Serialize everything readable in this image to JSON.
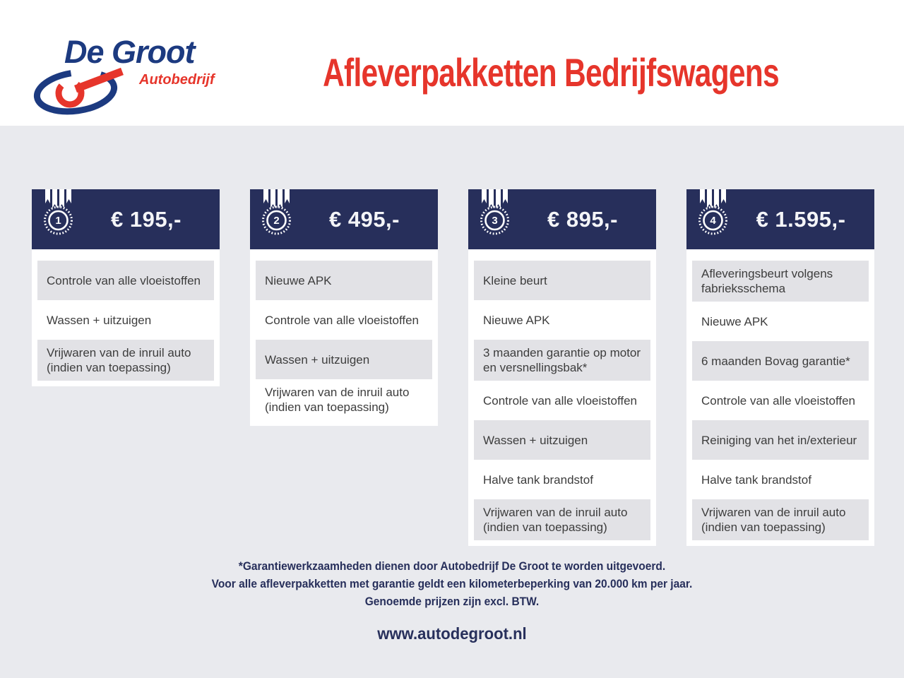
{
  "brand": {
    "name": "De Groot",
    "subtitle": "Autobedrijf"
  },
  "header": {
    "title": "Afleverpakketten Bedrijfswagens"
  },
  "packages": [
    {
      "number": "1",
      "price": "€ 195,-",
      "items": [
        "Controle van alle vloeistoffen",
        "Wassen + uitzuigen",
        "Vrijwaren van de inruil auto (indien van toepassing)"
      ]
    },
    {
      "number": "2",
      "price": "€ 495,-",
      "items": [
        "Nieuwe APK",
        "Controle van alle vloeistoffen",
        "Wassen + uitzuigen",
        "Vrijwaren van de inruil auto (indien van toepassing)"
      ]
    },
    {
      "number": "3",
      "price": "€ 895,-",
      "items": [
        "Kleine beurt",
        "Nieuwe APK",
        "3 maanden garantie op motor en versnellingsbak*",
        "Controle van alle vloeistoffen",
        "Wassen + uitzuigen",
        "Halve tank brandstof",
        "Vrijwaren van de inruil auto (indien van toepassing)"
      ]
    },
    {
      "number": "4",
      "price": "€ 1.595,-",
      "items": [
        "Afleveringsbeurt volgens fabrieksschema",
        "Nieuwe APK",
        "6 maanden Bovag garantie*",
        "Controle van alle vloeistoffen",
        "Reiniging van het in/exterieur",
        "Halve tank brandstof",
        "Vrijwaren van de inruil auto (indien van toepassing)"
      ]
    }
  ],
  "footer": {
    "lines": [
      "*Garantiewerkzaamheden dienen door Autobedrijf De Groot te worden uitgevoerd.",
      "Voor alle afleverpakketten met garantie geldt een kilometerbeperking van 20.000 km per jaar.",
      "Genoemde prijzen zijn excl. BTW."
    ],
    "website": "www.autodegroot.nl"
  },
  "colors": {
    "navy": "#272f5b",
    "red": "#e6352b",
    "logo_blue": "#1c3a80",
    "row_gray": "#e2e2e6",
    "page_gray": "#e9eaee"
  }
}
